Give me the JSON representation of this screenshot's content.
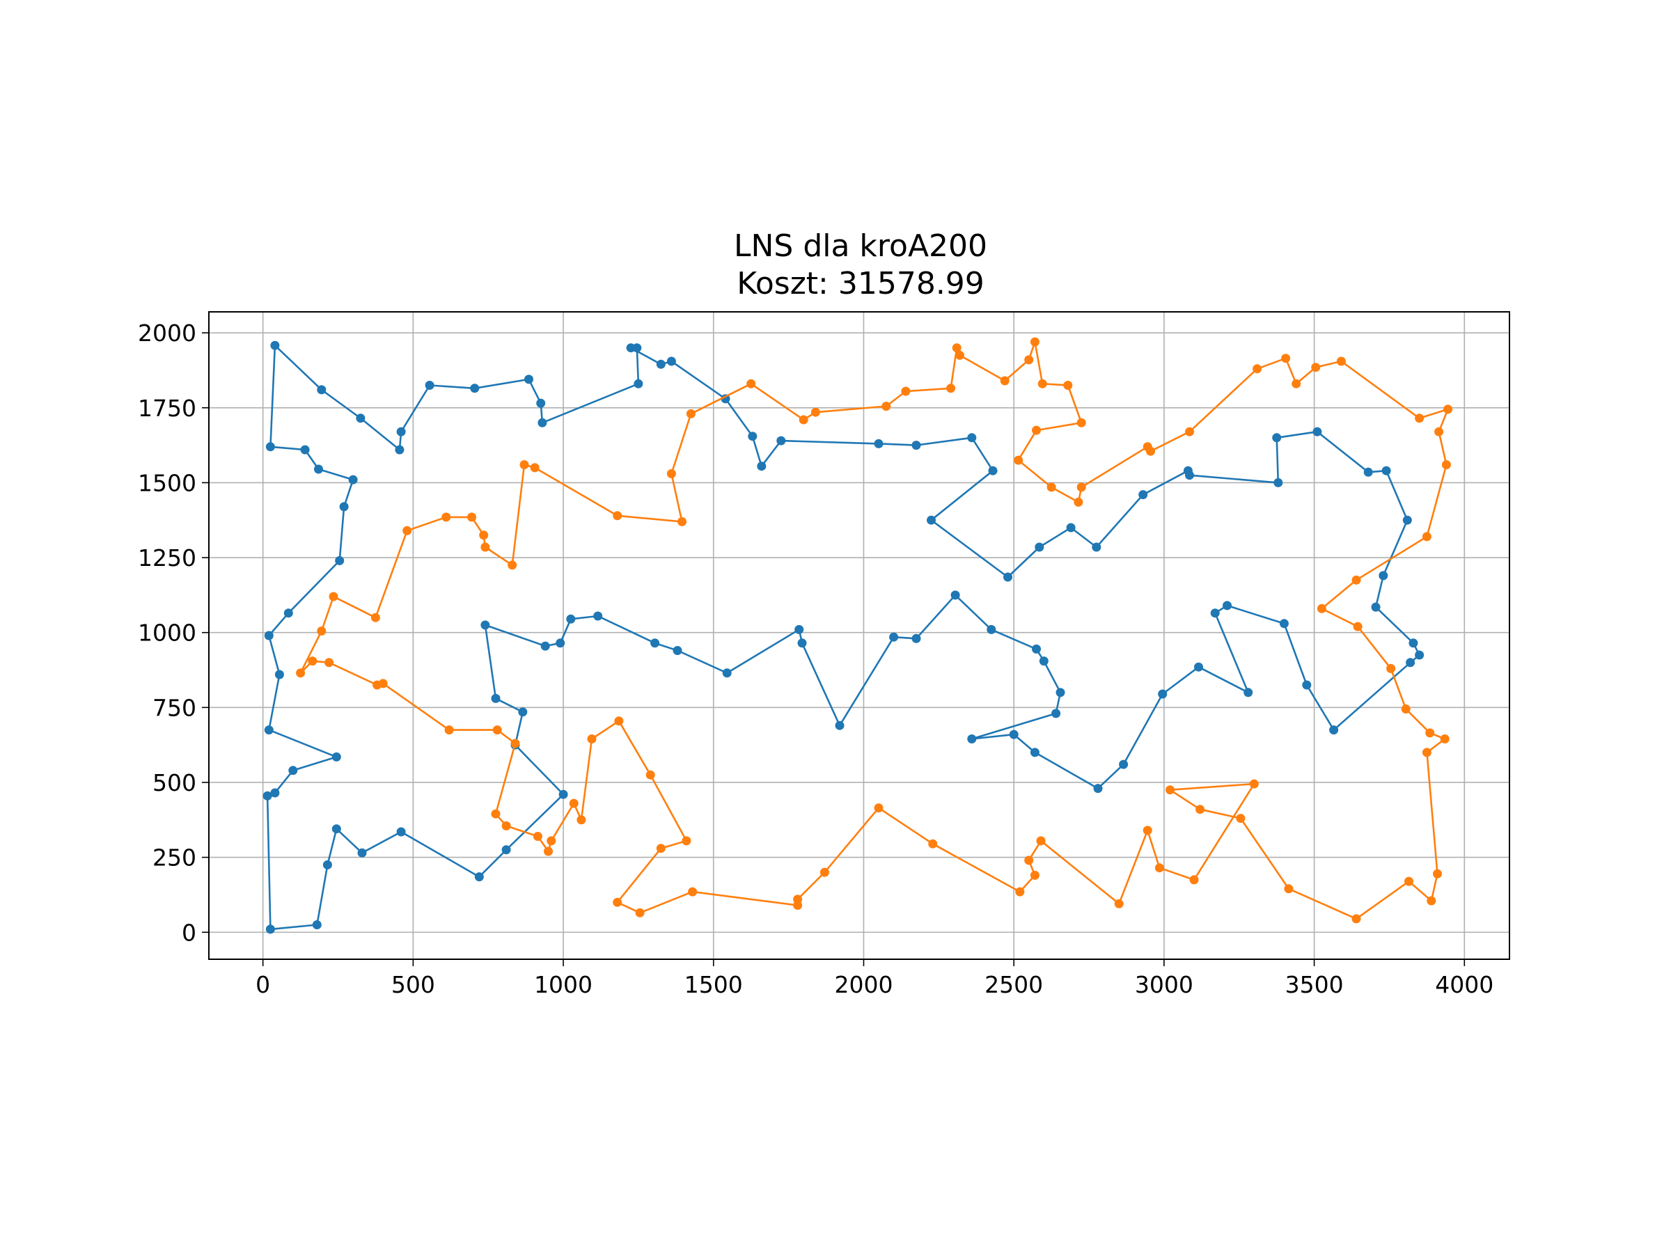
{
  "chart_data": {
    "type": "line",
    "title": "LNS dla kroA200",
    "subtitle": "Koszt: 31578.99",
    "xlabel": "",
    "ylabel": "",
    "xlim": [
      -180,
      4150
    ],
    "ylim": [
      -90,
      2070
    ],
    "grid": true,
    "xticks": [
      0,
      500,
      1000,
      1500,
      2000,
      2500,
      3000,
      3500,
      4000
    ],
    "yticks": [
      0,
      250,
      500,
      750,
      1000,
      1250,
      1500,
      1750,
      2000
    ],
    "colors": [
      "#1f77b4",
      "#ff7f0e"
    ],
    "series": [
      {
        "color": "#1f77b4",
        "points": [
          [
            40,
            1958
          ],
          [
            195,
            1810
          ],
          [
            325,
            1715
          ],
          [
            455,
            1610
          ],
          [
            460,
            1670
          ],
          [
            555,
            1825
          ],
          [
            705,
            1815
          ],
          [
            885,
            1845
          ],
          [
            925,
            1765
          ],
          [
            930,
            1700
          ],
          [
            1250,
            1830
          ],
          [
            1245,
            1950
          ],
          [
            1225,
            1950
          ],
          [
            1325,
            1895
          ],
          [
            1360,
            1905
          ],
          [
            1540,
            1780
          ],
          [
            1630,
            1655
          ],
          [
            1660,
            1555
          ],
          [
            1725,
            1640
          ],
          [
            2050,
            1630
          ],
          [
            2175,
            1625
          ],
          [
            2360,
            1650
          ],
          [
            2430,
            1540
          ],
          [
            2225,
            1375
          ],
          [
            2480,
            1185
          ],
          [
            2585,
            1285
          ],
          [
            2690,
            1350
          ],
          [
            2775,
            1285
          ],
          [
            2930,
            1460
          ],
          [
            3080,
            1540
          ],
          [
            3085,
            1525
          ],
          [
            3380,
            1500
          ],
          [
            3375,
            1650
          ],
          [
            3510,
            1670
          ],
          [
            3680,
            1535
          ],
          [
            3740,
            1540
          ],
          [
            3810,
            1375
          ],
          [
            3730,
            1190
          ],
          [
            3705,
            1085
          ],
          [
            3830,
            965
          ],
          [
            3850,
            925
          ],
          [
            3820,
            900
          ],
          [
            3565,
            675
          ],
          [
            3475,
            825
          ],
          [
            3400,
            1030
          ],
          [
            3210,
            1090
          ],
          [
            3170,
            1065
          ],
          [
            3280,
            800
          ],
          [
            3115,
            885
          ],
          [
            2995,
            795
          ],
          [
            2865,
            560
          ],
          [
            2780,
            480
          ],
          [
            2570,
            600
          ],
          [
            2500,
            660
          ],
          [
            2360,
            645
          ],
          [
            2640,
            730
          ],
          [
            2655,
            800
          ],
          [
            2600,
            905
          ],
          [
            2575,
            945
          ],
          [
            2425,
            1010
          ],
          [
            2305,
            1125
          ],
          [
            2175,
            980
          ],
          [
            2100,
            985
          ],
          [
            1920,
            690
          ],
          [
            1795,
            965
          ],
          [
            1785,
            1010
          ],
          [
            1545,
            865
          ],
          [
            1380,
            940
          ],
          [
            1305,
            965
          ],
          [
            1115,
            1055
          ],
          [
            1025,
            1045
          ],
          [
            990,
            965
          ],
          [
            940,
            955
          ],
          [
            740,
            1025
          ],
          [
            775,
            780
          ],
          [
            865,
            735
          ],
          [
            840,
            625
          ],
          [
            1000,
            460
          ],
          [
            810,
            275
          ],
          [
            720,
            185
          ],
          [
            460,
            335
          ],
          [
            330,
            265
          ],
          [
            245,
            345
          ],
          [
            215,
            225
          ],
          [
            180,
            25
          ],
          [
            25,
            10
          ],
          [
            15,
            455
          ],
          [
            40,
            465
          ],
          [
            100,
            540
          ],
          [
            245,
            585
          ],
          [
            20,
            675
          ],
          [
            55,
            860
          ],
          [
            20,
            990
          ],
          [
            85,
            1065
          ],
          [
            255,
            1240
          ],
          [
            270,
            1420
          ],
          [
            300,
            1510
          ],
          [
            185,
            1545
          ],
          [
            140,
            1610
          ],
          [
            25,
            1620
          ]
        ]
      },
      {
        "color": "#ff7f0e",
        "points": [
          [
            2310,
            1950
          ],
          [
            2320,
            1925
          ],
          [
            2470,
            1840
          ],
          [
            2550,
            1910
          ],
          [
            2570,
            1970
          ],
          [
            2595,
            1830
          ],
          [
            2680,
            1825
          ],
          [
            2725,
            1700
          ],
          [
            2575,
            1675
          ],
          [
            2515,
            1575
          ],
          [
            2625,
            1485
          ],
          [
            2715,
            1435
          ],
          [
            2725,
            1485
          ],
          [
            2945,
            1620
          ],
          [
            2955,
            1605
          ],
          [
            3085,
            1670
          ],
          [
            3310,
            1880
          ],
          [
            3405,
            1915
          ],
          [
            3440,
            1830
          ],
          [
            3505,
            1885
          ],
          [
            3590,
            1905
          ],
          [
            3850,
            1715
          ],
          [
            3945,
            1745
          ],
          [
            3915,
            1670
          ],
          [
            3940,
            1560
          ],
          [
            3875,
            1320
          ],
          [
            3640,
            1175
          ],
          [
            3525,
            1080
          ],
          [
            3645,
            1020
          ],
          [
            3755,
            880
          ],
          [
            3805,
            745
          ],
          [
            3885,
            665
          ],
          [
            3935,
            645
          ],
          [
            3875,
            600
          ],
          [
            3910,
            195
          ],
          [
            3890,
            105
          ],
          [
            3815,
            170
          ],
          [
            3640,
            45
          ],
          [
            3415,
            145
          ],
          [
            3255,
            380
          ],
          [
            3120,
            410
          ],
          [
            3020,
            475
          ],
          [
            3300,
            495
          ],
          [
            3100,
            175
          ],
          [
            2985,
            215
          ],
          [
            2945,
            340
          ],
          [
            2850,
            95
          ],
          [
            2590,
            305
          ],
          [
            2550,
            240
          ],
          [
            2570,
            190
          ],
          [
            2520,
            135
          ],
          [
            2230,
            295
          ],
          [
            2050,
            415
          ],
          [
            1870,
            200
          ],
          [
            1780,
            110
          ],
          [
            1780,
            90
          ],
          [
            1430,
            135
          ],
          [
            1255,
            65
          ],
          [
            1180,
            100
          ],
          [
            1325,
            280
          ],
          [
            1410,
            305
          ],
          [
            1290,
            525
          ],
          [
            1185,
            705
          ],
          [
            1095,
            645
          ],
          [
            1060,
            375
          ],
          [
            1035,
            430
          ],
          [
            960,
            305
          ],
          [
            950,
            270
          ],
          [
            915,
            320
          ],
          [
            810,
            355
          ],
          [
            775,
            395
          ],
          [
            840,
            630
          ],
          [
            780,
            675
          ],
          [
            620,
            675
          ],
          [
            400,
            830
          ],
          [
            380,
            825
          ],
          [
            220,
            900
          ],
          [
            165,
            905
          ],
          [
            125,
            865
          ],
          [
            195,
            1005
          ],
          [
            235,
            1120
          ],
          [
            375,
            1050
          ],
          [
            480,
            1340
          ],
          [
            610,
            1385
          ],
          [
            695,
            1385
          ],
          [
            735,
            1325
          ],
          [
            740,
            1285
          ],
          [
            830,
            1225
          ],
          [
            870,
            1560
          ],
          [
            905,
            1550
          ],
          [
            1180,
            1390
          ],
          [
            1395,
            1370
          ],
          [
            1360,
            1530
          ],
          [
            1425,
            1730
          ],
          [
            1625,
            1830
          ],
          [
            1800,
            1710
          ],
          [
            1840,
            1735
          ],
          [
            2075,
            1755
          ],
          [
            2140,
            1805
          ],
          [
            2290,
            1815
          ]
        ]
      }
    ]
  }
}
